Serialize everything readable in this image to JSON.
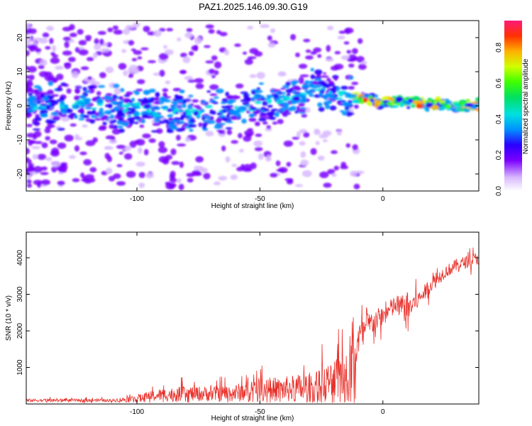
{
  "title": "PAZ1.2025.146.09.30.G19",
  "chart_data": [
    {
      "type": "heatmap",
      "xlabel": "Height of straight line (km)",
      "ylabel": "Frequency (Hz)",
      "xlim": [
        -145,
        39
      ],
      "ylim": [
        -25,
        25
      ],
      "x_ticks": [
        -100,
        -50,
        0
      ],
      "x_tick_labels": [
        "-100",
        "-50",
        "0"
      ],
      "y_ticks": [
        -20,
        -10,
        0,
        10,
        20
      ],
      "y_tick_labels": [
        "-20",
        "-10",
        "0",
        "10",
        "20"
      ],
      "ridge": {
        "description_of_values": "approximate frequency of main spectral ridge vs height",
        "height_km": [
          -145,
          -120,
          -100,
          -80,
          -60,
          -45,
          -35,
          -28,
          -20,
          -12,
          -5,
          0,
          10,
          20,
          39
        ],
        "frequency_hz": [
          0,
          0,
          -1,
          -2,
          -1,
          1,
          3,
          5,
          4,
          2,
          2,
          1,
          1,
          0.5,
          0
        ]
      },
      "colorbar": {
        "label": "Normalized spectral amplitude",
        "ticks": [
          0.0,
          0.2,
          0.4,
          0.6,
          0.8
        ],
        "tick_labels": [
          "0.0",
          "0.2",
          "0.4",
          "0.6",
          "0.8"
        ],
        "range": [
          0,
          0.95
        ]
      }
    },
    {
      "type": "line",
      "xlabel": "Height of straight line (km)",
      "ylabel": "SNR (10 * v/v)",
      "xlim": [
        -145,
        39
      ],
      "ylim": [
        0,
        4700
      ],
      "x_ticks": [
        -100,
        -50,
        0
      ],
      "x_tick_labels": [
        "-100",
        "-50",
        "0"
      ],
      "y_ticks": [
        1000,
        2000,
        3000,
        4000
      ],
      "y_tick_labels": [
        "1000",
        "2000",
        "3000",
        "4000"
      ],
      "color": "#e8312b",
      "envelope": {
        "height_km": [
          -145,
          -110,
          -100,
          -90,
          -80,
          -70,
          -60,
          -50,
          -40,
          -30,
          -20,
          -15,
          -12,
          -10,
          -5,
          0,
          5,
          10,
          15,
          20,
          25,
          30,
          39
        ],
        "mean_snr": [
          100,
          100,
          150,
          250,
          280,
          280,
          300,
          400,
          400,
          450,
          600,
          800,
          1000,
          1800,
          2200,
          2400,
          2700,
          2600,
          2900,
          3300,
          3600,
          3800,
          4000
        ],
        "spread": [
          60,
          60,
          150,
          250,
          300,
          300,
          350,
          450,
          500,
          600,
          900,
          1200,
          1200,
          600,
          500,
          400,
          400,
          600,
          300,
          300,
          250,
          250,
          250
        ]
      }
    }
  ]
}
